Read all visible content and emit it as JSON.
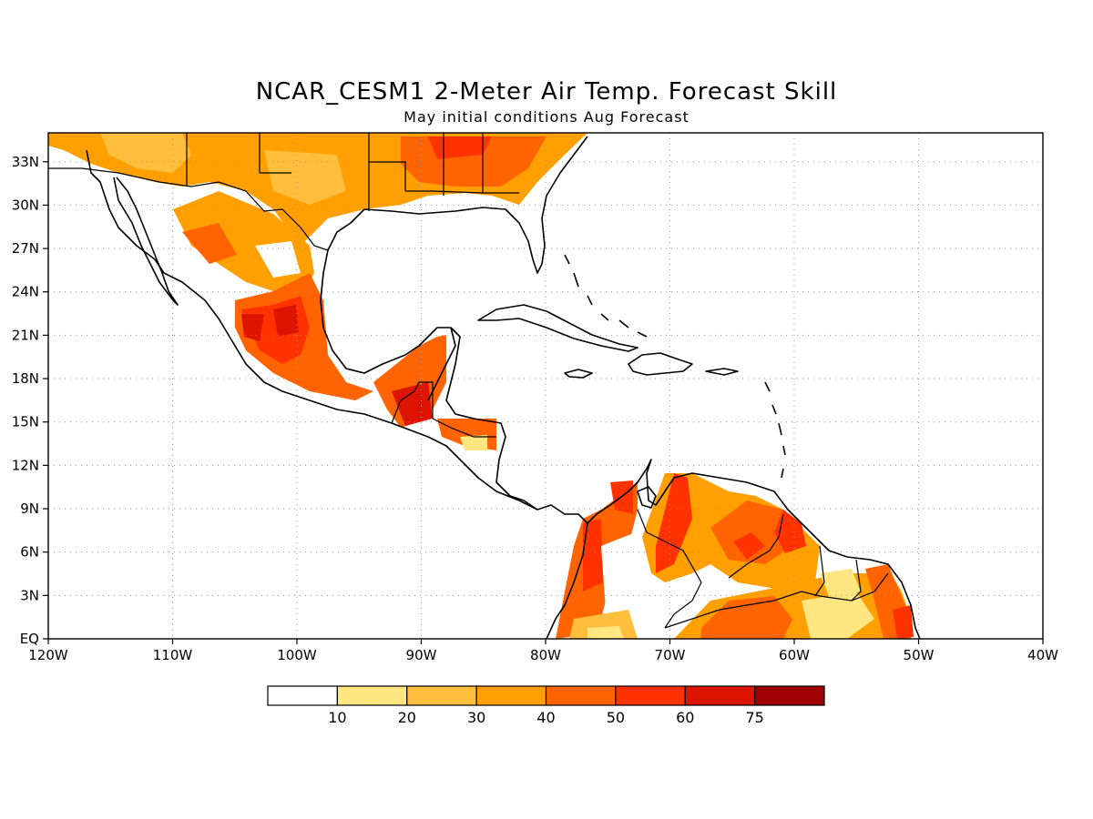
{
  "title": "NCAR_CESM1 2-Meter Air Temp. Forecast Skill",
  "subtitle": "May initial conditions  Aug Forecast",
  "map": {
    "lon_range": [
      -120,
      -40
    ],
    "lat_range": [
      0,
      35
    ],
    "grid": "dotted",
    "x_ticks": [
      "120W",
      "110W",
      "100W",
      "90W",
      "80W",
      "70W",
      "60W",
      "50W",
      "40W"
    ],
    "y_ticks": [
      "EQ",
      "3N",
      "6N",
      "9N",
      "12N",
      "15N",
      "18N",
      "21N",
      "24N",
      "27N",
      "30N",
      "33N"
    ]
  },
  "colorbar": {
    "labels": [
      "10",
      "20",
      "30",
      "40",
      "50",
      "60",
      "75"
    ],
    "colors": [
      "#ffffff",
      "#ffe680",
      "#ffbe3c",
      "#ffa000",
      "#ff6400",
      "#ff3200",
      "#dc1400",
      "#a00000"
    ]
  }
}
